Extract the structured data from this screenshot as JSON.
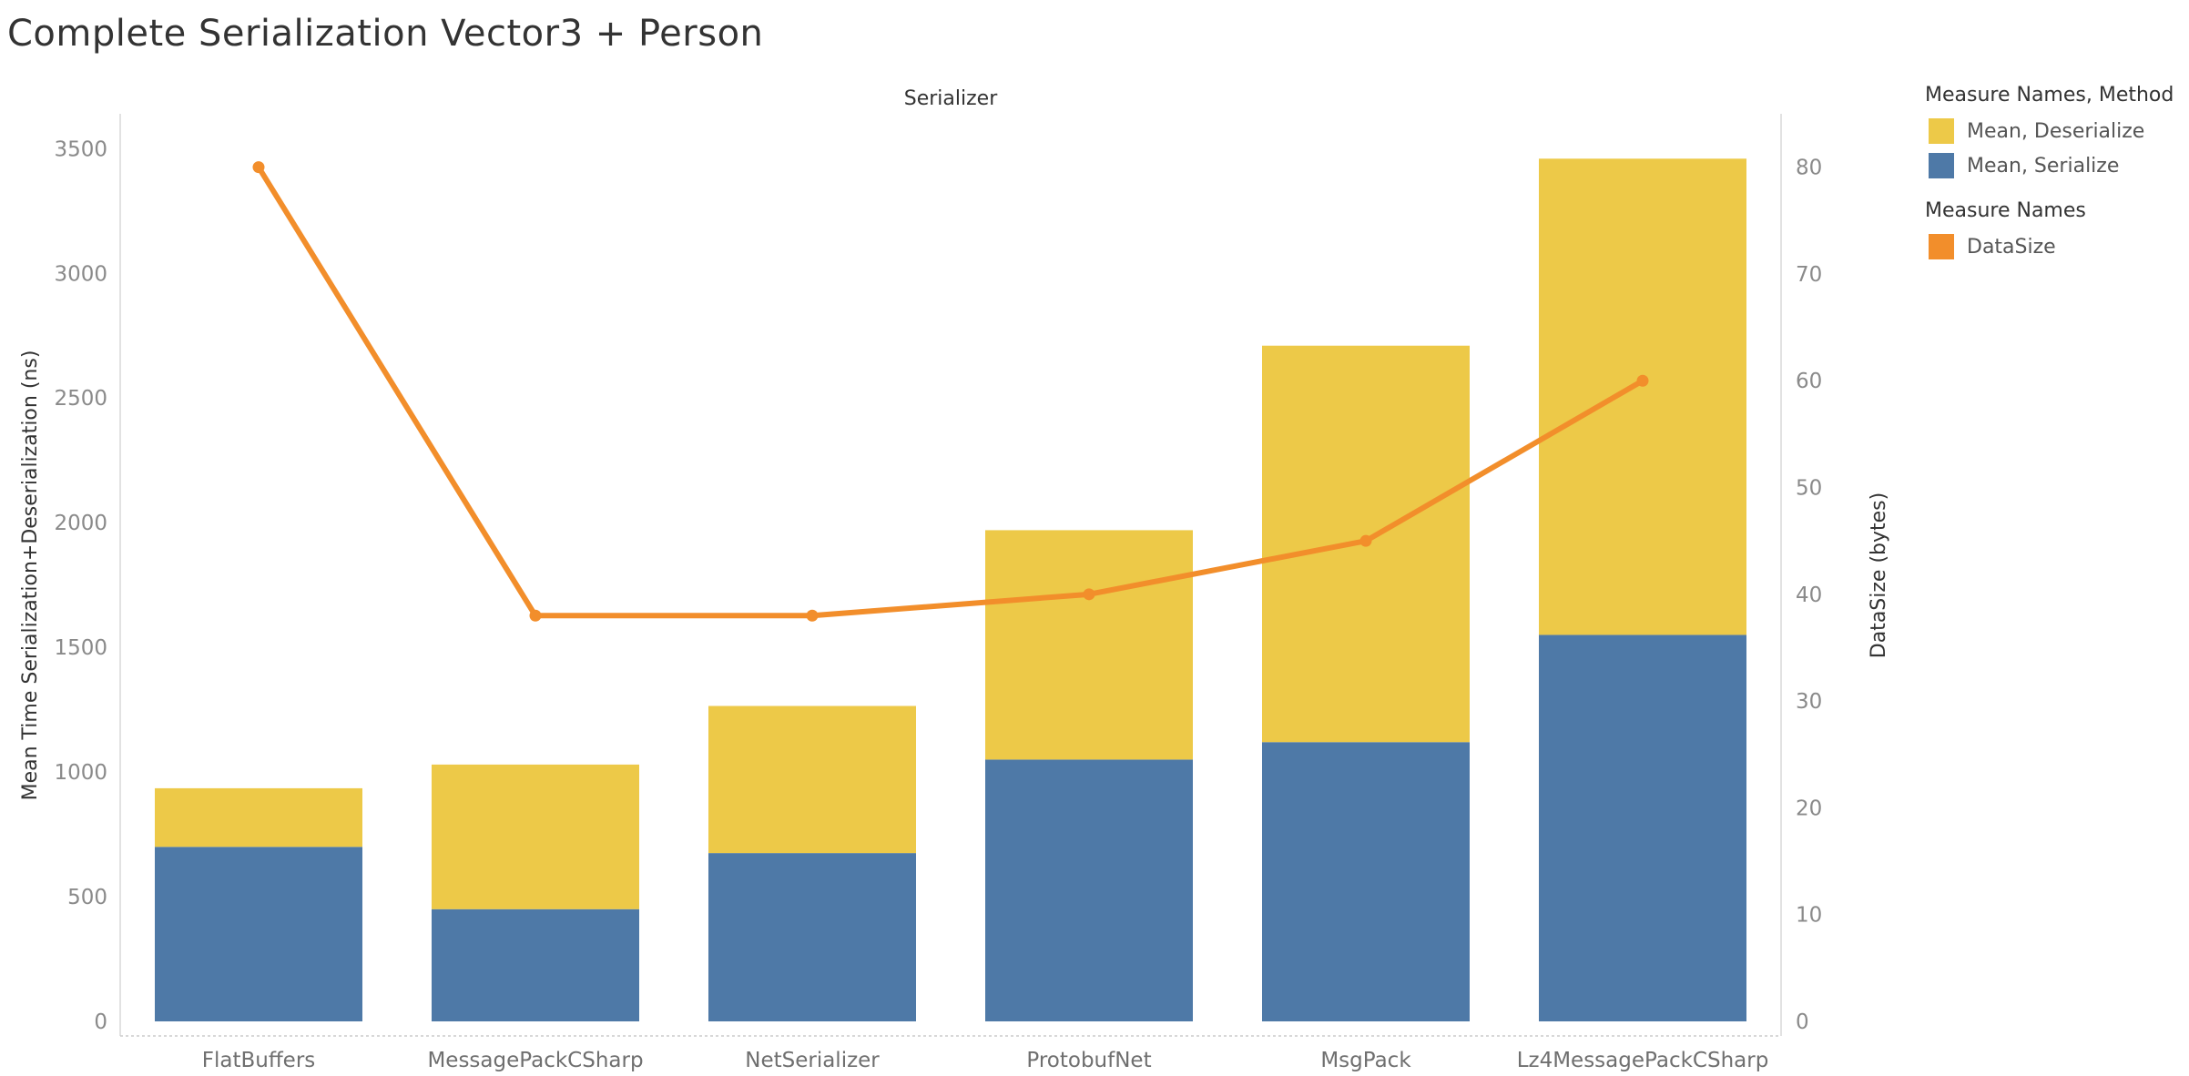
{
  "title": "Complete Serialization Vector3 + Person",
  "chart_data": {
    "type": "bar",
    "stacked": true,
    "panel_title": "Serializer",
    "categories": [
      "FlatBuffers",
      "MessagePackCSharp",
      "NetSerializer",
      "ProtobufNet",
      "MsgPack",
      "Lz4MessagePackCSharp"
    ],
    "series": [
      {
        "name": "Mean, Serialize",
        "values": [
          700,
          450,
          675,
          1050,
          1120,
          1550
        ],
        "color": "#4e79a7",
        "axis": "left"
      },
      {
        "name": "Mean, Deserialize",
        "values": [
          235,
          580,
          590,
          920,
          1590,
          1910
        ],
        "color": "#edc948",
        "axis": "left"
      },
      {
        "name": "DataSize",
        "values": [
          80,
          38,
          38,
          40,
          45,
          60
        ],
        "color": "#f28e2b",
        "type": "line",
        "axis": "right"
      }
    ],
    "ylabel": "Mean Time Serialization+Deserialization (ns)",
    "y2label": "DataSize (bytes)",
    "ylim": [
      0,
      3640
    ],
    "y2lim": [
      0,
      85
    ],
    "yticks": [
      0,
      500,
      1000,
      1500,
      2000,
      2500,
      3000,
      3500
    ],
    "y2ticks": [
      0,
      10,
      20,
      30,
      40,
      50,
      60,
      70,
      80
    ],
    "grid": false,
    "legend": {
      "placement": "right",
      "groups": [
        {
          "title": "Measure Names, Method",
          "items": [
            {
              "label": "Mean, Deserialize",
              "color": "#edc948"
            },
            {
              "label": "Mean, Serialize",
              "color": "#4e79a7"
            }
          ]
        },
        {
          "title": "Measure Names",
          "items": [
            {
              "label": "DataSize",
              "color": "#f28e2b"
            }
          ]
        }
      ]
    }
  }
}
